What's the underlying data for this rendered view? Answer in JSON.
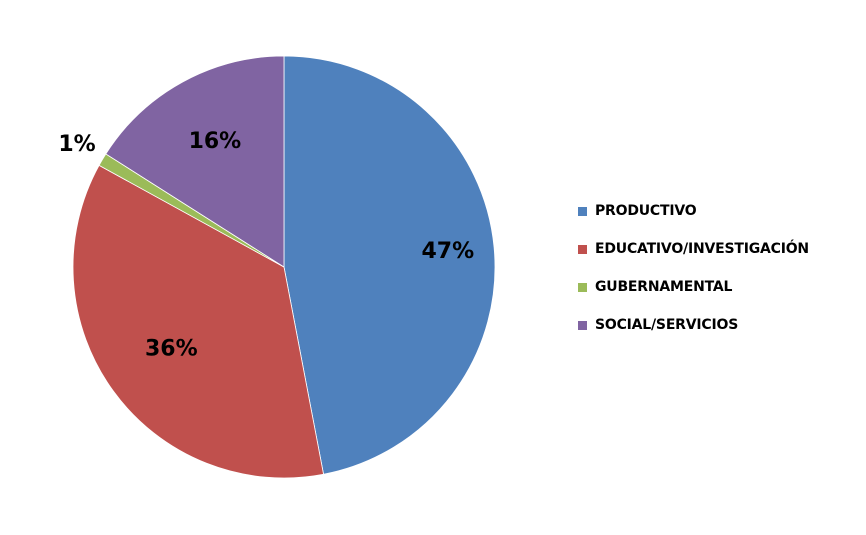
{
  "chart_data": {
    "type": "pie",
    "slices": [
      {
        "name": "PRODUCTIVO",
        "value": 47,
        "label": "47%",
        "color": "#4F81BD"
      },
      {
        "name": "EDUCATIVO/INVESTIGACIÓN",
        "value": 36,
        "label": "36%",
        "color": "#C0504D"
      },
      {
        "name": "GUBERNAMENTAL",
        "value": 1,
        "label": "1%",
        "color": "#9BBB59"
      },
      {
        "name": "SOCIAL/SERVICIOS",
        "value": 16,
        "label": "16%",
        "color": "#8064A2"
      }
    ],
    "legend_position": "right"
  },
  "legend": {
    "items": [
      {
        "label": "PRODUCTIVO",
        "color": "#4F81BD"
      },
      {
        "label": "EDUCATIVO/INVESTIGACIÓN",
        "color": "#C0504D"
      },
      {
        "label": "GUBERNAMENTAL",
        "color": "#9BBB59"
      },
      {
        "label": "SOCIAL/SERVICIOS",
        "color": "#8064A2"
      }
    ]
  }
}
